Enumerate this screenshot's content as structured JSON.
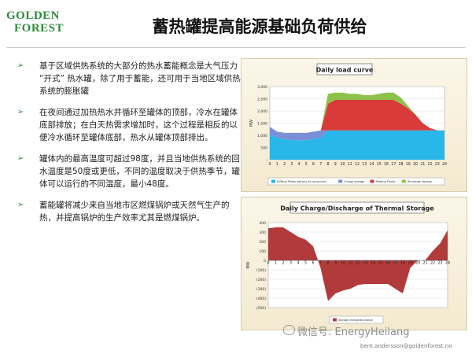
{
  "logo": {
    "line1": "GOLDEN",
    "line2": "FOREST"
  },
  "title": "蓄热罐提高能源基础负荷供给",
  "bullets": [
    "基于区域供热系统的大部分的热水蓄能概念是大气压力 “开式” 热水罐，除了用于蓄能，还可用于当地区域供热系统的膨胀罐",
    "在夜间通过加热热水并循环至罐体的顶部，冷水在罐体底部排放；在白天热需求增加时，这个过程是相反的以便冷水循环至罐体底部，热水从罐体顶部排出。",
    "罐体内的最高温度可超过98度，并且当地供热系统的回水温度是50度或更低，不同的温度取决于供热季节，罐体可以运行的不同温度，最小48度。",
    "蓄能罐将减少来自当地市区燃煤锅炉或天然气生产的热，并提高锅炉的生产效率尤其是燃煤锅炉。"
  ],
  "bullet_arrow": "➢",
  "chart_data": [
    {
      "type": "area",
      "title": "Daily load curve",
      "ylabel": "MW",
      "x": [
        0,
        1,
        2,
        3,
        4,
        5,
        6,
        7,
        8,
        9,
        10,
        11,
        12,
        13,
        14,
        15,
        16,
        17,
        18,
        19,
        20,
        21,
        22,
        23,
        24
      ],
      "ylim": [
        0,
        3000
      ],
      "yticks": [
        "3,000",
        "2,500",
        "2,000",
        "1,500",
        "1,000",
        "500",
        "-"
      ],
      "series": [
        {
          "name": "Drifting Plants delivery to consumers",
          "color": "#29b6e8",
          "values": [
            1050,
            900,
            850,
            800,
            800,
            800,
            850,
            900,
            1200,
            1200,
            1200,
            1200,
            1200,
            1200,
            1200,
            1200,
            1200,
            1200,
            1200,
            1200,
            1200,
            1200,
            1200,
            1200,
            1200
          ]
        },
        {
          "name": "Charge storage",
          "color": "#7b8fd6",
          "values": [
            300,
            250,
            250,
            300,
            300,
            300,
            300,
            300,
            0,
            0,
            0,
            0,
            0,
            0,
            0,
            0,
            0,
            0,
            0,
            0,
            0,
            0,
            0,
            0,
            0
          ]
        },
        {
          "name": "Peaking Plants",
          "color": "#d93a3a",
          "values": [
            0,
            0,
            0,
            0,
            0,
            0,
            0,
            0,
            1100,
            1250,
            1250,
            1250,
            1250,
            1250,
            1250,
            1250,
            1250,
            1250,
            1100,
            900,
            650,
            300,
            100,
            0,
            0
          ]
        },
        {
          "name": "Discharge storage",
          "color": "#8cc24a",
          "values": [
            0,
            0,
            0,
            0,
            0,
            0,
            0,
            0,
            400,
            300,
            300,
            250,
            250,
            200,
            200,
            250,
            300,
            300,
            250,
            100,
            0,
            0,
            0,
            0,
            0
          ]
        }
      ]
    },
    {
      "type": "area",
      "title": "Daily Charge/Discharge of Thermal Storage",
      "ylabel": "MW",
      "x": [
        0,
        1,
        2,
        3,
        4,
        5,
        6,
        7,
        8,
        9,
        10,
        11,
        12,
        13,
        14,
        15,
        16,
        17,
        18,
        19,
        20,
        21,
        22,
        23,
        24
      ],
      "ylim": [
        -500,
        400
      ],
      "yticks": [
        "400",
        "300",
        "200",
        "100",
        "0",
        "(100)",
        "(200)",
        "(300)",
        "(400)",
        "(500)"
      ],
      "series": [
        {
          "name": "Storage charge/discharge",
          "color": "#b23a3a",
          "values": [
            340,
            350,
            350,
            300,
            250,
            220,
            150,
            -80,
            -430,
            -350,
            -320,
            -300,
            -260,
            -250,
            -250,
            -250,
            -250,
            -300,
            -350,
            -80,
            0,
            0,
            100,
            180,
            320
          ]
        }
      ]
    }
  ],
  "footer_email": "bent.andersson@goldenforest.no",
  "watermark_text": "微信号: EnergyHeilang"
}
